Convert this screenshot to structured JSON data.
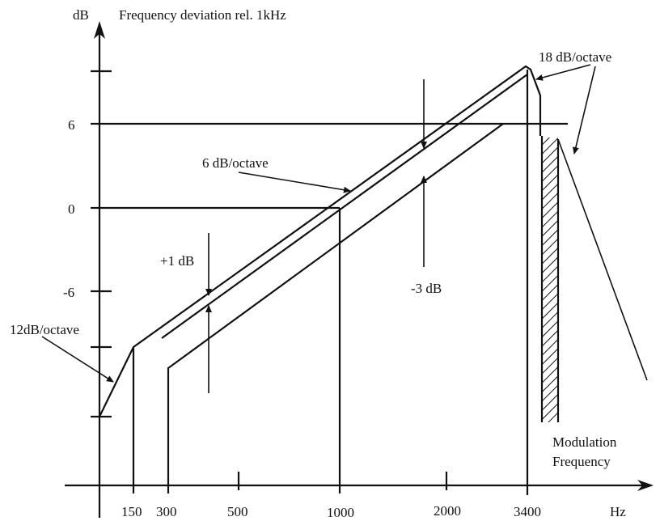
{
  "diagram": {
    "y_unit": "dB",
    "title": "Frequency deviation rel. 1kHz",
    "y_tick_labels": [
      "6",
      "0",
      "-6"
    ],
    "x_tick_labels": [
      "150",
      "300",
      "500",
      "1000",
      "2000",
      "3400"
    ],
    "x_unit": "Hz",
    "annotations": {
      "slope_low": "12dB/octave",
      "slope_mid": "6 dB/octave",
      "slope_high": "18 dB/octave",
      "tol_upper": "+1 dB",
      "tol_lower": "-3 dB",
      "mod_line1": "Modulation",
      "mod_line2": "Frequency"
    },
    "ink_color": "#111111"
  }
}
